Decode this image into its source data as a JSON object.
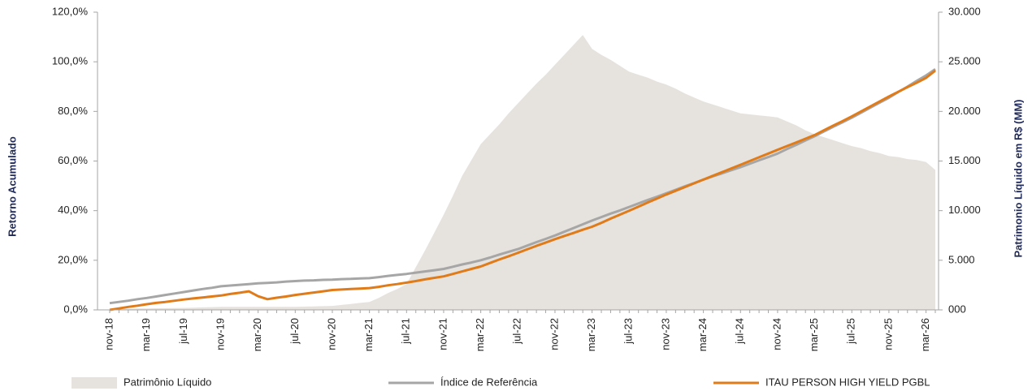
{
  "chart_data": {
    "type": "line",
    "y_label": "Retorno Acumulado",
    "y2_label": "Patrimonio Líquido em R$ (MM)",
    "legend": "bottom",
    "categories": [
      "nov-18",
      null,
      null,
      null,
      "mar-19",
      null,
      null,
      null,
      "jul-19",
      null,
      null,
      null,
      "nov-19",
      null,
      null,
      null,
      "mar-20",
      null,
      null,
      null,
      "jul-20",
      null,
      null,
      null,
      "nov-20",
      null,
      null,
      null,
      "mar-21",
      null,
      null,
      null,
      "jul-21",
      null,
      null,
      null,
      "nov-21",
      null,
      null,
      null,
      "mar-22",
      null,
      null,
      null,
      "jul-22",
      null,
      null,
      null,
      "nov-22",
      null,
      null,
      null,
      "mar-23",
      null,
      null,
      null,
      "jul-23",
      null,
      null,
      null,
      "nov-23",
      null,
      null,
      null,
      "mar-24",
      null,
      null,
      null,
      "jul-24",
      null,
      null,
      null,
      "nov-24",
      null,
      null,
      null,
      "mar-25",
      null,
      null,
      null,
      "jul-25",
      null,
      null,
      null,
      "nov-25",
      null,
      null,
      null,
      "mar-26",
      null
    ],
    "ylim": [
      0,
      120
    ],
    "yticks": [
      {
        "value": 0,
        "label": "0,0%"
      },
      {
        "value": 20,
        "label": "20,0%"
      },
      {
        "value": 40,
        "label": "40,0%"
      },
      {
        "value": 60,
        "label": "60,0%"
      },
      {
        "value": 80,
        "label": "80,0%"
      },
      {
        "value": 100,
        "label": "100,0%"
      },
      {
        "value": 120,
        "label": "120,0%"
      }
    ],
    "y2lim": [
      0,
      30000
    ],
    "y2ticks": [
      {
        "value": 0,
        "label": "000"
      },
      {
        "value": 5000,
        "label": "5.000"
      },
      {
        "value": 10000,
        "label": "10.000"
      },
      {
        "value": 15000,
        "label": "15.000"
      },
      {
        "value": 20000,
        "label": "20.000"
      },
      {
        "value": 25000,
        "label": "25.000"
      },
      {
        "value": 30000,
        "label": "30.000"
      }
    ],
    "series": [
      {
        "name": "Patrimônio Líquido",
        "kind": "area",
        "axis": "y2",
        "color": "#e6e2de",
        "values": [
          100,
          110,
          120,
          140,
          150,
          160,
          170,
          190,
          200,
          230,
          250,
          280,
          300,
          300,
          300,
          300,
          300,
          300,
          300,
          300,
          300,
          330,
          350,
          380,
          400,
          500,
          600,
          700,
          800,
          1200,
          1700,
          2100,
          2600,
          4300,
          6000,
          7800,
          9600,
          11500,
          13500,
          15100,
          16700,
          17700,
          18700,
          19800,
          20800,
          21800,
          22800,
          23700,
          24700,
          25700,
          26700,
          27700,
          26300,
          25700,
          25200,
          24600,
          24000,
          23700,
          23400,
          23000,
          22700,
          22300,
          21800,
          21400,
          21000,
          20700,
          20400,
          20100,
          19800,
          19700,
          19600,
          19500,
          19400,
          19000,
          18600,
          18100,
          17700,
          17400,
          17100,
          16800,
          16500,
          16300,
          16000,
          15800,
          15500,
          15400,
          15200,
          15100,
          14900,
          14100
        ]
      },
      {
        "name": "Índice de Referência",
        "kind": "line",
        "color": "#a6a6a6",
        "values": [
          2.7,
          3.2,
          3.7,
          4.3,
          4.8,
          5.4,
          6.0,
          6.6,
          7.2,
          7.8,
          8.4,
          8.9,
          9.5,
          9.8,
          10.1,
          10.4,
          10.7,
          10.9,
          11.1,
          11.4,
          11.6,
          11.8,
          11.9,
          12.1,
          12.2,
          12.4,
          12.5,
          12.7,
          12.8,
          13.2,
          13.7,
          14.1,
          14.5,
          15.0,
          15.5,
          16.0,
          16.5,
          17.4,
          18.3,
          19.1,
          20.0,
          21.1,
          22.3,
          23.4,
          24.5,
          25.9,
          27.3,
          28.6,
          30.0,
          31.5,
          33.0,
          34.5,
          36.0,
          37.4,
          38.8,
          40.1,
          41.5,
          42.9,
          44.3,
          45.6,
          47.0,
          48.4,
          49.8,
          51.1,
          52.5,
          53.8,
          55.0,
          56.3,
          57.5,
          58.9,
          60.3,
          61.6,
          63.0,
          64.8,
          66.5,
          68.3,
          70.0,
          71.9,
          73.8,
          75.6,
          77.5,
          79.5,
          81.5,
          83.5,
          85.5,
          87.8,
          90.0,
          92.3,
          94.5,
          97.0
        ]
      },
      {
        "name": "ITAU PERSON HIGH YIELD PGBL",
        "kind": "line",
        "color": "#e07b1a",
        "values": [
          0,
          0.6,
          1.2,
          1.7,
          2.3,
          2.8,
          3.2,
          3.7,
          4.2,
          4.6,
          5.0,
          5.4,
          5.8,
          6.4,
          6.9,
          7.5,
          5.5,
          4.3,
          4.9,
          5.4,
          6.0,
          6.5,
          7.0,
          7.5,
          8.0,
          8.2,
          8.4,
          8.6,
          8.8,
          9.3,
          9.9,
          10.4,
          11.0,
          11.6,
          12.3,
          12.9,
          13.5,
          14.5,
          15.5,
          16.5,
          17.5,
          18.9,
          20.3,
          21.6,
          23.0,
          24.4,
          25.8,
          27.1,
          28.5,
          29.8,
          31.0,
          32.3,
          33.5,
          35.1,
          36.8,
          38.4,
          40.0,
          41.6,
          43.3,
          44.9,
          46.5,
          48.0,
          49.5,
          51.0,
          52.5,
          54.0,
          55.5,
          57.0,
          58.5,
          60.0,
          61.5,
          63.0,
          64.5,
          66.0,
          67.5,
          69.0,
          70.5,
          72.4,
          74.3,
          76.1,
          78.0,
          80.0,
          82.0,
          84.0,
          86.0,
          87.9,
          89.8,
          91.6,
          93.5,
          96.5
        ]
      }
    ]
  }
}
